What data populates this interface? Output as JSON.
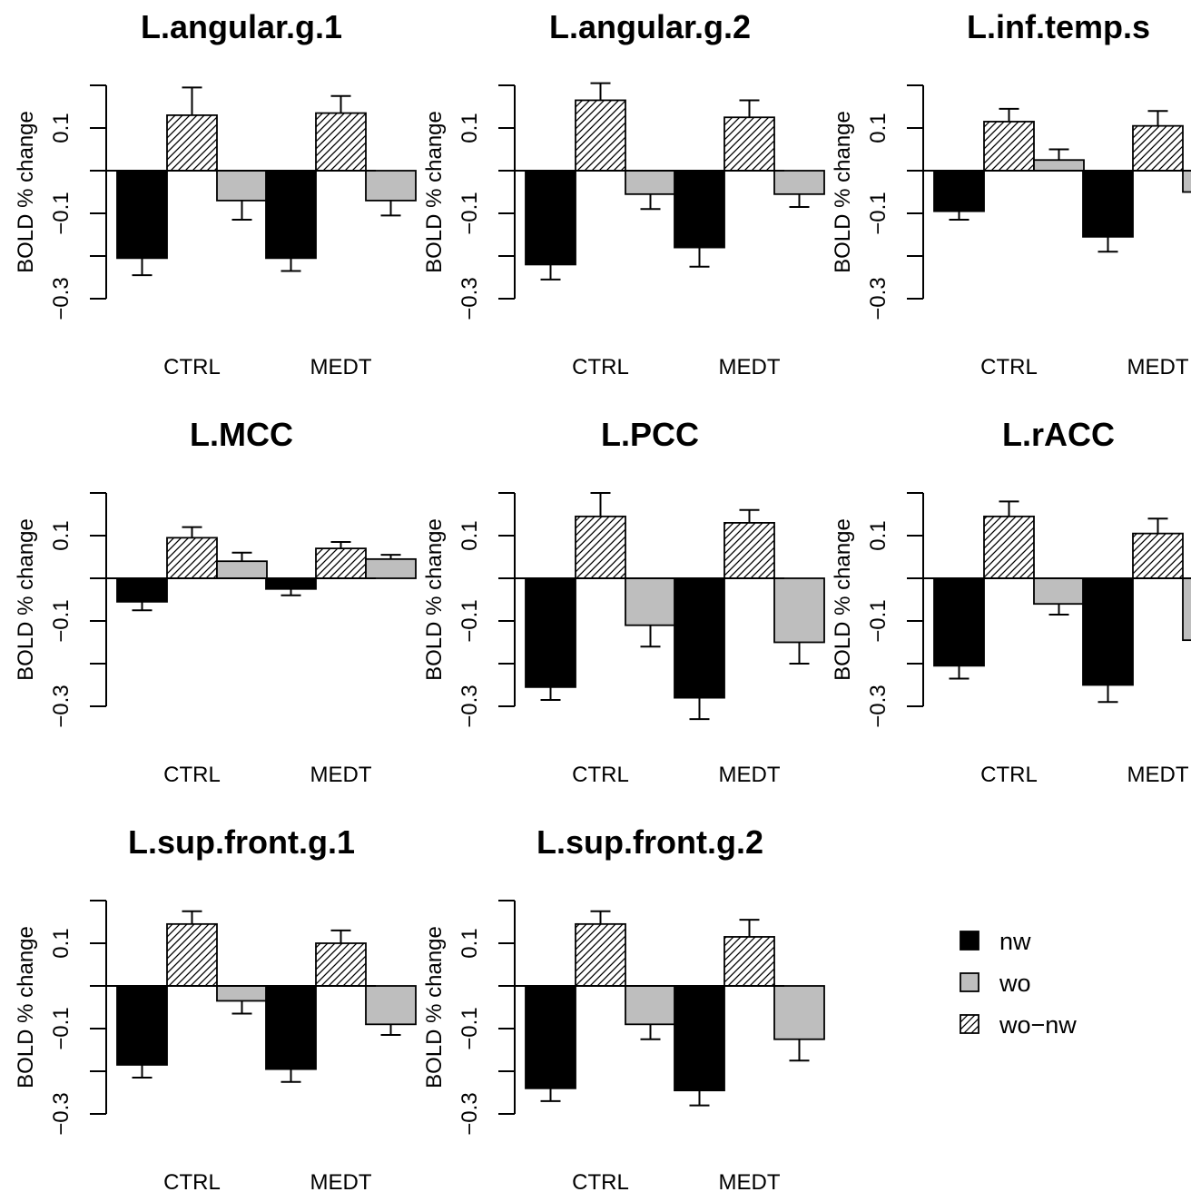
{
  "chart_data": {
    "type": "bar",
    "legend": {
      "placement": "bottom-right",
      "entries": [
        {
          "key": "nw",
          "label": "nw",
          "fill": "#000000"
        },
        {
          "key": "wo",
          "label": "wo",
          "fill": "#bebebe"
        },
        {
          "key": "wonw",
          "label": "wo−nw",
          "fill": "hatch"
        }
      ]
    },
    "ylabel": "BOLD % change",
    "ylim": [
      -0.3,
      0.2
    ],
    "yticks": [
      0.1,
      -0.1,
      -0.3
    ],
    "ytick_labels": [
      "0.1",
      "−0.1",
      "−0.3"
    ],
    "categories": [
      "CTRL",
      "MEDT"
    ],
    "panels": [
      {
        "title": "L.angular.g.1",
        "groups": [
          {
            "nw": -0.205,
            "nw_err": 0.04,
            "wonw": 0.13,
            "wonw_err": 0.065,
            "wo": -0.07,
            "wo_err": 0.045
          },
          {
            "nw": -0.205,
            "nw_err": 0.03,
            "wonw": 0.135,
            "wonw_err": 0.04,
            "wo": -0.07,
            "wo_err": 0.035
          }
        ]
      },
      {
        "title": "L.angular.g.2",
        "groups": [
          {
            "nw": -0.22,
            "nw_err": 0.035,
            "wonw": 0.165,
            "wonw_err": 0.04,
            "wo": -0.055,
            "wo_err": 0.035
          },
          {
            "nw": -0.18,
            "nw_err": 0.045,
            "wonw": 0.125,
            "wonw_err": 0.04,
            "wo": -0.055,
            "wo_err": 0.03
          }
        ]
      },
      {
        "title": "L.inf.temp.s",
        "groups": [
          {
            "nw": -0.095,
            "nw_err": 0.02,
            "wonw": 0.115,
            "wonw_err": 0.03,
            "wo": 0.025,
            "wo_err": 0.025
          },
          {
            "nw": -0.155,
            "nw_err": 0.035,
            "wonw": 0.105,
            "wonw_err": 0.035,
            "wo": -0.05,
            "wo_err": 0.035
          }
        ]
      },
      {
        "title": "L.MCC",
        "groups": [
          {
            "nw": -0.055,
            "nw_err": 0.02,
            "wonw": 0.095,
            "wonw_err": 0.025,
            "wo": 0.04,
            "wo_err": 0.02
          },
          {
            "nw": -0.025,
            "nw_err": 0.015,
            "wonw": 0.07,
            "wonw_err": 0.015,
            "wo": 0.045,
            "wo_err": 0.01
          }
        ]
      },
      {
        "title": "L.PCC",
        "groups": [
          {
            "nw": -0.255,
            "nw_err": 0.03,
            "wonw": 0.145,
            "wonw_err": 0.055,
            "wo": -0.11,
            "wo_err": 0.05
          },
          {
            "nw": -0.28,
            "nw_err": 0.05,
            "wonw": 0.13,
            "wonw_err": 0.03,
            "wo": -0.15,
            "wo_err": 0.05
          }
        ]
      },
      {
        "title": "L.rACC",
        "groups": [
          {
            "nw": -0.205,
            "nw_err": 0.03,
            "wonw": 0.145,
            "wonw_err": 0.035,
            "wo": -0.06,
            "wo_err": 0.025
          },
          {
            "nw": -0.25,
            "nw_err": 0.04,
            "wonw": 0.105,
            "wonw_err": 0.035,
            "wo": -0.145,
            "wo_err": 0.03
          }
        ]
      },
      {
        "title": "L.sup.front.g.1",
        "groups": [
          {
            "nw": -0.185,
            "nw_err": 0.03,
            "wonw": 0.145,
            "wonw_err": 0.03,
            "wo": -0.035,
            "wo_err": 0.03
          },
          {
            "nw": -0.195,
            "nw_err": 0.03,
            "wonw": 0.1,
            "wonw_err": 0.03,
            "wo": -0.09,
            "wo_err": 0.025
          }
        ]
      },
      {
        "title": "L.sup.front.g.2",
        "groups": [
          {
            "nw": -0.24,
            "nw_err": 0.03,
            "wonw": 0.145,
            "wonw_err": 0.03,
            "wo": -0.09,
            "wo_err": 0.035
          },
          {
            "nw": -0.245,
            "nw_err": 0.035,
            "wonw": 0.115,
            "wonw_err": 0.04,
            "wo": -0.125,
            "wo_err": 0.05
          }
        ]
      }
    ]
  }
}
